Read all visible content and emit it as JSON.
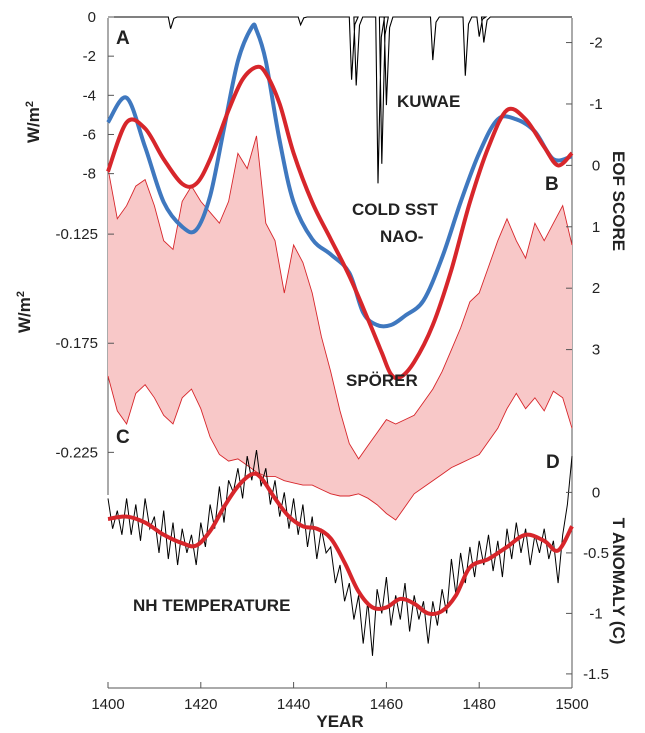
{
  "chart_data": {
    "type": "line",
    "x_axis": {
      "label": "YEAR",
      "range": [
        1400,
        1500
      ],
      "ticks": [
        "1400",
        "1420",
        "1440",
        "1460",
        "1480",
        "1500"
      ]
    },
    "panels": [
      {
        "label": "A",
        "ylabel": "W/m",
        "ylabel_sup": "2",
        "side": "left",
        "ylim": [
          -9.5,
          0
        ],
        "tick_labels": [
          "0",
          "-2",
          "-4",
          "-6",
          "-8"
        ],
        "annotation": "KUWAE",
        "series": [
          {
            "color": "#000000",
            "baseline": 0,
            "spikes": [
              {
                "x": 1413.5,
                "depth": -0.6
              },
              {
                "x": 1441.5,
                "depth": -0.4
              },
              {
                "x": 1452.5,
                "depth": -3.2
              },
              {
                "x": 1453.5,
                "depth": -3.5
              },
              {
                "x": 1458.2,
                "depth": -8.5
              },
              {
                "x": 1459,
                "depth": -7.5
              },
              {
                "x": 1460,
                "depth": -4.5
              },
              {
                "x": 1470,
                "depth": -2.2
              },
              {
                "x": 1477,
                "depth": -3.0
              },
              {
                "x": 1480,
                "depth": -1.0
              },
              {
                "x": 1481,
                "depth": -1.3
              }
            ]
          }
        ]
      },
      {
        "label": "B",
        "ylabel": "EOF SCORE",
        "side": "right",
        "ylim": [
          -2.4,
          4
        ],
        "inverted": true,
        "tick_labels": [
          "-2",
          "-1",
          "0",
          "1",
          "2",
          "3"
        ],
        "annotations": [
          "COLD SST",
          "NAO-"
        ],
        "series": [
          {
            "color": "#3f78bf",
            "x": [
              1400,
              1404,
              1408,
              1412,
              1416,
              1419,
              1422,
              1425,
              1428,
              1431,
              1432,
              1434,
              1437,
              1440,
              1444,
              1448,
              1452,
              1455,
              1458,
              1461,
              1464,
              1468,
              1472,
              1476,
              1480,
              1484,
              1488,
              1492,
              1496,
              1500
            ],
            "values": [
              -0.7,
              -1.1,
              -0.3,
              0.6,
              1.0,
              1.05,
              0.5,
              -0.6,
              -1.7,
              -2.25,
              -2.2,
              -1.7,
              -0.4,
              0.6,
              1.2,
              1.45,
              1.75,
              2.4,
              2.6,
              2.6,
              2.45,
              2.2,
              1.5,
              0.6,
              -0.2,
              -0.75,
              -0.75,
              -0.55,
              -0.1,
              -0.15
            ]
          },
          {
            "color": "#d7262b",
            "x": [
              1400,
              1404,
              1408,
              1412,
              1416,
              1419,
              1422,
              1426,
              1429,
              1432,
              1434,
              1437,
              1440,
              1444,
              1448,
              1452,
              1456,
              1459,
              1461,
              1463,
              1466,
              1470,
              1474,
              1478,
              1482,
              1486,
              1490,
              1494,
              1497,
              1500
            ],
            "values": [
              0.1,
              -0.7,
              -0.6,
              -0.1,
              0.3,
              0.3,
              -0.1,
              -0.9,
              -1.4,
              -1.6,
              -1.5,
              -1.0,
              -0.2,
              0.6,
              1.2,
              1.8,
              2.5,
              3.05,
              3.4,
              3.45,
              3.2,
              2.6,
              1.7,
              0.6,
              -0.3,
              -0.9,
              -0.75,
              -0.3,
              0.0,
              -0.2
            ]
          }
        ]
      },
      {
        "label": "C",
        "ylabel": "W/m",
        "ylabel_sup": "2",
        "side": "left",
        "ylim": [
          -0.245,
          -0.075
        ],
        "tick_labels": [
          "-0.125",
          "-0.175",
          "-0.225"
        ],
        "annotation": "SPÖRER",
        "series": [
          {
            "type": "band",
            "fill": "#f8c8c8",
            "stroke": "#d7262b",
            "x": [
              1400,
              1402,
              1404,
              1406,
              1408,
              1410,
              1412,
              1414,
              1416,
              1418,
              1420,
              1422,
              1424,
              1426,
              1428,
              1430,
              1432,
              1434,
              1436,
              1438,
              1440,
              1442,
              1444,
              1446,
              1448,
              1450,
              1452,
              1454,
              1456,
              1458,
              1460,
              1462,
              1464,
              1466,
              1468,
              1470,
              1472,
              1474,
              1476,
              1478,
              1480,
              1482,
              1484,
              1486,
              1488,
              1490,
              1492,
              1494,
              1496,
              1498,
              1500
            ],
            "upper": [
              -0.095,
              -0.118,
              -0.112,
              -0.103,
              -0.1,
              -0.112,
              -0.128,
              -0.132,
              -0.11,
              -0.103,
              -0.11,
              -0.115,
              -0.12,
              -0.11,
              -0.088,
              -0.095,
              -0.08,
              -0.12,
              -0.128,
              -0.152,
              -0.13,
              -0.138,
              -0.152,
              -0.172,
              -0.188,
              -0.206,
              -0.221,
              -0.228,
              -0.222,
              -0.216,
              -0.21,
              -0.212,
              -0.21,
              -0.208,
              -0.202,
              -0.196,
              -0.188,
              -0.178,
              -0.168,
              -0.156,
              -0.152,
              -0.14,
              -0.128,
              -0.118,
              -0.128,
              -0.136,
              -0.12,
              -0.128,
              -0.12,
              -0.112,
              -0.13
            ],
            "lower": [
              -0.19,
              -0.206,
              -0.212,
              -0.198,
              -0.194,
              -0.2,
              -0.208,
              -0.212,
              -0.2,
              -0.196,
              -0.205,
              -0.218,
              -0.226,
              -0.229,
              -0.228,
              -0.231,
              -0.234,
              -0.236,
              -0.236,
              -0.238,
              -0.239,
              -0.24,
              -0.24,
              -0.242,
              -0.244,
              -0.245,
              -0.245,
              -0.244,
              -0.246,
              -0.249,
              -0.253,
              -0.256,
              -0.25,
              -0.244,
              -0.241,
              -0.238,
              -0.235,
              -0.232,
              -0.23,
              -0.228,
              -0.226,
              -0.22,
              -0.214,
              -0.205,
              -0.198,
              -0.205,
              -0.2,
              -0.206,
              -0.197,
              -0.2,
              -0.214
            ]
          }
        ]
      },
      {
        "label": "D",
        "ylabel": "T ANOMALY (C)",
        "side": "right",
        "ylim": [
          -1.6,
          0.4
        ],
        "tick_labels": [
          "0",
          "-0.5",
          "-1",
          "-1.5"
        ],
        "annotation": "NH TEMPERATURE",
        "series": [
          {
            "color": "#000000",
            "x": [
              1400,
              1401,
              1402,
              1403,
              1404,
              1405,
              1406,
              1407,
              1408,
              1409,
              1410,
              1411,
              1412,
              1413,
              1414,
              1415,
              1416,
              1417,
              1418,
              1419,
              1420,
              1421,
              1422,
              1423,
              1424,
              1425,
              1426,
              1427,
              1428,
              1429,
              1430,
              1431,
              1432,
              1433,
              1434,
              1435,
              1436,
              1437,
              1438,
              1439,
              1440,
              1441,
              1442,
              1443,
              1444,
              1445,
              1446,
              1447,
              1448,
              1449,
              1450,
              1451,
              1452,
              1453,
              1454,
              1455,
              1456,
              1457,
              1458,
              1459,
              1460,
              1461,
              1462,
              1463,
              1464,
              1465,
              1466,
              1467,
              1468,
              1469,
              1470,
              1471,
              1472,
              1473,
              1474,
              1475,
              1476,
              1477,
              1478,
              1479,
              1480,
              1481,
              1482,
              1483,
              1484,
              1485,
              1486,
              1487,
              1488,
              1489,
              1490,
              1491,
              1492,
              1493,
              1494,
              1495,
              1496,
              1497,
              1498,
              1499,
              1500
            ],
            "values": [
              -0.05,
              -0.3,
              -0.15,
              -0.35,
              -0.05,
              -0.35,
              -0.1,
              -0.4,
              -0.05,
              -0.3,
              -0.2,
              -0.5,
              -0.15,
              -0.55,
              -0.25,
              -0.6,
              -0.3,
              -0.5,
              -0.35,
              -0.6,
              -0.25,
              -0.45,
              -0.1,
              -0.3,
              0.05,
              -0.25,
              0.1,
              0.0,
              0.2,
              -0.05,
              0.3,
              0.1,
              0.35,
              0.05,
              0.2,
              -0.1,
              0.1,
              -0.2,
              0.0,
              -0.3,
              -0.05,
              -0.35,
              -0.1,
              -0.45,
              -0.2,
              -0.55,
              -0.3,
              -0.5,
              -0.45,
              -0.75,
              -0.6,
              -0.9,
              -0.75,
              -1.05,
              -0.85,
              -1.25,
              -0.9,
              -1.35,
              -0.8,
              -1.0,
              -0.7,
              -1.1,
              -0.85,
              -1.05,
              -0.75,
              -1.15,
              -0.85,
              -1.05,
              -0.9,
              -1.25,
              -0.9,
              -1.1,
              -0.8,
              -1.0,
              -0.55,
              -0.85,
              -0.5,
              -0.75,
              -0.45,
              -0.7,
              -0.4,
              -0.6,
              -0.35,
              -0.65,
              -0.4,
              -0.7,
              -0.3,
              -0.55,
              -0.25,
              -0.5,
              -0.3,
              -0.6,
              -0.35,
              -0.5,
              -0.3,
              -0.55,
              -0.4,
              -0.75,
              -0.35,
              -0.1,
              0.3
            ]
          },
          {
            "color": "#d7262b",
            "x": [
              1400,
              1404,
              1408,
              1412,
              1416,
              1419,
              1422,
              1425,
              1428,
              1431,
              1433,
              1436,
              1439,
              1442,
              1445,
              1448,
              1451,
              1454,
              1457,
              1460,
              1463,
              1466,
              1469,
              1472,
              1475,
              1478,
              1482,
              1486,
              1490,
              1494,
              1497,
              1500
            ],
            "values": [
              -0.22,
              -0.2,
              -0.25,
              -0.35,
              -0.42,
              -0.44,
              -0.32,
              -0.12,
              0.05,
              0.15,
              0.12,
              -0.05,
              -0.2,
              -0.28,
              -0.3,
              -0.38,
              -0.58,
              -0.82,
              -0.95,
              -0.95,
              -0.88,
              -0.92,
              -1.0,
              -0.98,
              -0.85,
              -0.62,
              -0.55,
              -0.45,
              -0.35,
              -0.4,
              -0.48,
              -0.28
            ]
          }
        ]
      }
    ]
  }
}
